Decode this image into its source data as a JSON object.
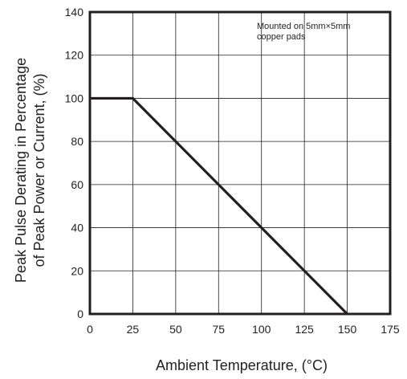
{
  "chart_data": {
    "type": "line",
    "title": "",
    "xlabel": "Ambient Temperature, (°C)",
    "ylabel_lines": [
      "Peak Pulse Derating in Percentage",
      "of Peak Power or Current, (%)"
    ],
    "xlim": [
      0,
      175
    ],
    "ylim": [
      0,
      140
    ],
    "x_ticks": [
      0,
      25,
      50,
      75,
      100,
      125,
      150,
      175
    ],
    "y_ticks": [
      0,
      20,
      40,
      60,
      80,
      100,
      120,
      140
    ],
    "grid": true,
    "legend": "none",
    "annotation_lines": [
      "Mounted on 5mm×5mm",
      "copper pads"
    ],
    "series": [
      {
        "x": [
          0,
          25,
          150
        ],
        "y": [
          100,
          100,
          0
        ],
        "color": "#231f20"
      }
    ]
  }
}
